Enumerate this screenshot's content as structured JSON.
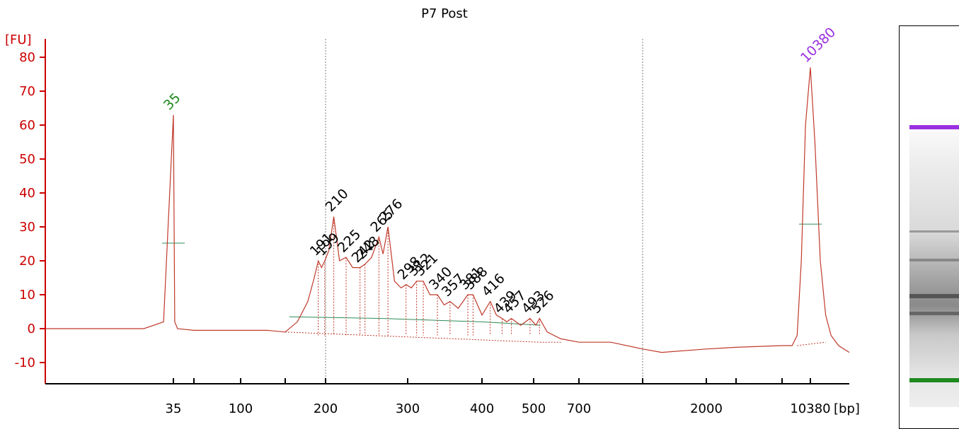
{
  "chart_data": {
    "type": "line",
    "title": "P7 Post",
    "ylabel": "[FU]",
    "xlabel": "[bp]",
    "ylim": [
      -15,
      85
    ],
    "yticks": [
      -10,
      0,
      10,
      20,
      30,
      40,
      50,
      60,
      70,
      80
    ],
    "xticks": [
      {
        "label": "35",
        "bp": 35
      },
      {
        "label": "",
        "bp": 50
      },
      {
        "label": "100",
        "bp": 100
      },
      {
        "label": "",
        "bp": 150
      },
      {
        "label": "200",
        "bp": 200
      },
      {
        "label": "300",
        "bp": 300
      },
      {
        "label": "400",
        "bp": 400
      },
      {
        "label": "500",
        "bp": 500
      },
      {
        "label": "700",
        "bp": 700
      },
      {
        "label": "",
        "bp": 1000
      },
      {
        "label": "2000",
        "bp": 2000
      },
      {
        "label": "",
        "bp": 4000
      },
      {
        "label": "",
        "bp": 7000
      },
      {
        "label": "10380",
        "bp": 10380
      }
    ],
    "region_markers_bp": [
      200,
      1000
    ],
    "markers": [
      {
        "label": "35",
        "bp": 35,
        "fu": 63,
        "color": "#1e8a1e"
      },
      {
        "label": "10380",
        "bp": 10380,
        "fu": 77,
        "color": "#9b30e0"
      }
    ],
    "peaks": [
      {
        "label": "191",
        "bp": 191,
        "fu": 20
      },
      {
        "label": "199",
        "bp": 199,
        "fu": 20
      },
      {
        "label": "210",
        "bp": 210,
        "fu": 33
      },
      {
        "label": "225",
        "bp": 225,
        "fu": 21
      },
      {
        "label": "242",
        "bp": 242,
        "fu": 18
      },
      {
        "label": "248",
        "bp": 248,
        "fu": 19
      },
      {
        "label": "265",
        "bp": 265,
        "fu": 27
      },
      {
        "label": "276",
        "bp": 276,
        "fu": 30
      },
      {
        "label": "298",
        "bp": 298,
        "fu": 13
      },
      {
        "label": "312",
        "bp": 312,
        "fu": 14
      },
      {
        "label": "321",
        "bp": 321,
        "fu": 14
      },
      {
        "label": "340",
        "bp": 340,
        "fu": 10
      },
      {
        "label": "357",
        "bp": 357,
        "fu": 8
      },
      {
        "label": "381",
        "bp": 381,
        "fu": 10
      },
      {
        "label": "388",
        "bp": 388,
        "fu": 10
      },
      {
        "label": "416",
        "bp": 416,
        "fu": 8
      },
      {
        "label": "439",
        "bp": 439,
        "fu": 3
      },
      {
        "label": "457",
        "bp": 457,
        "fu": 3
      },
      {
        "label": "493",
        "bp": 493,
        "fu": 3
      },
      {
        "label": "526",
        "bp": 526,
        "fu": 3
      }
    ],
    "trace": [
      {
        "bp": 22,
        "fu": 0
      },
      {
        "bp": 28,
        "fu": 0
      },
      {
        "bp": 32,
        "fu": 0
      },
      {
        "bp": 34,
        "fu": 2
      },
      {
        "bp": 35,
        "fu": 63
      },
      {
        "bp": 36,
        "fu": 2
      },
      {
        "bp": 38,
        "fu": 0
      },
      {
        "bp": 50,
        "fu": -0.5
      },
      {
        "bp": 70,
        "fu": -0.5
      },
      {
        "bp": 100,
        "fu": -0.5
      },
      {
        "bp": 130,
        "fu": -0.5
      },
      {
        "bp": 150,
        "fu": -1
      },
      {
        "bp": 165,
        "fu": 2
      },
      {
        "bp": 178,
        "fu": 8
      },
      {
        "bp": 186,
        "fu": 15
      },
      {
        "bp": 191,
        "fu": 20
      },
      {
        "bp": 195,
        "fu": 18
      },
      {
        "bp": 199,
        "fu": 20
      },
      {
        "bp": 204,
        "fu": 23
      },
      {
        "bp": 210,
        "fu": 33
      },
      {
        "bp": 217,
        "fu": 20
      },
      {
        "bp": 225,
        "fu": 21
      },
      {
        "bp": 233,
        "fu": 18
      },
      {
        "bp": 242,
        "fu": 18
      },
      {
        "bp": 248,
        "fu": 19
      },
      {
        "bp": 256,
        "fu": 21
      },
      {
        "bp": 265,
        "fu": 27
      },
      {
        "bp": 270,
        "fu": 22
      },
      {
        "bp": 276,
        "fu": 30
      },
      {
        "bp": 284,
        "fu": 14
      },
      {
        "bp": 292,
        "fu": 12
      },
      {
        "bp": 298,
        "fu": 13
      },
      {
        "bp": 305,
        "fu": 12
      },
      {
        "bp": 312,
        "fu": 14
      },
      {
        "bp": 321,
        "fu": 14
      },
      {
        "bp": 330,
        "fu": 10
      },
      {
        "bp": 340,
        "fu": 10
      },
      {
        "bp": 349,
        "fu": 7
      },
      {
        "bp": 357,
        "fu": 8
      },
      {
        "bp": 368,
        "fu": 6
      },
      {
        "bp": 381,
        "fu": 10
      },
      {
        "bp": 388,
        "fu": 10
      },
      {
        "bp": 400,
        "fu": 4
      },
      {
        "bp": 416,
        "fu": 8
      },
      {
        "bp": 428,
        "fu": 4
      },
      {
        "bp": 439,
        "fu": 3
      },
      {
        "bp": 448,
        "fu": 2
      },
      {
        "bp": 457,
        "fu": 3
      },
      {
        "bp": 475,
        "fu": 1
      },
      {
        "bp": 493,
        "fu": 3
      },
      {
        "bp": 510,
        "fu": 1
      },
      {
        "bp": 526,
        "fu": 3
      },
      {
        "bp": 560,
        "fu": -1
      },
      {
        "bp": 620,
        "fu": -3
      },
      {
        "bp": 700,
        "fu": -4
      },
      {
        "bp": 850,
        "fu": -4
      },
      {
        "bp": 1000,
        "fu": -6
      },
      {
        "bp": 1300,
        "fu": -7
      },
      {
        "bp": 2000,
        "fu": -6
      },
      {
        "bp": 4000,
        "fu": -5.5
      },
      {
        "bp": 7000,
        "fu": -5
      },
      {
        "bp": 8200,
        "fu": -5
      },
      {
        "bp": 8800,
        "fu": -2
      },
      {
        "bp": 9300,
        "fu": 20
      },
      {
        "bp": 9800,
        "fu": 60
      },
      {
        "bp": 10380,
        "fu": 77
      },
      {
        "bp": 10800,
        "fu": 55
      },
      {
        "bp": 11300,
        "fu": 20
      },
      {
        "bp": 11800,
        "fu": 4
      },
      {
        "bp": 12300,
        "fu": -2
      },
      {
        "bp": 13000,
        "fu": -5
      },
      {
        "bp": 14000,
        "fu": -7
      }
    ],
    "smear_baseline": [
      {
        "bp": 155,
        "fu": 3.5
      },
      {
        "bp": 270,
        "fu": 3
      },
      {
        "bp": 400,
        "fu": 2
      },
      {
        "bp": 530,
        "fu": 1
      }
    ],
    "colors": {
      "axis": "#cc0000",
      "trace": "#c0392b",
      "peak_label": "#000000",
      "baseline": "#2e8b57",
      "region_marker": "#7f7f7f"
    }
  }
}
